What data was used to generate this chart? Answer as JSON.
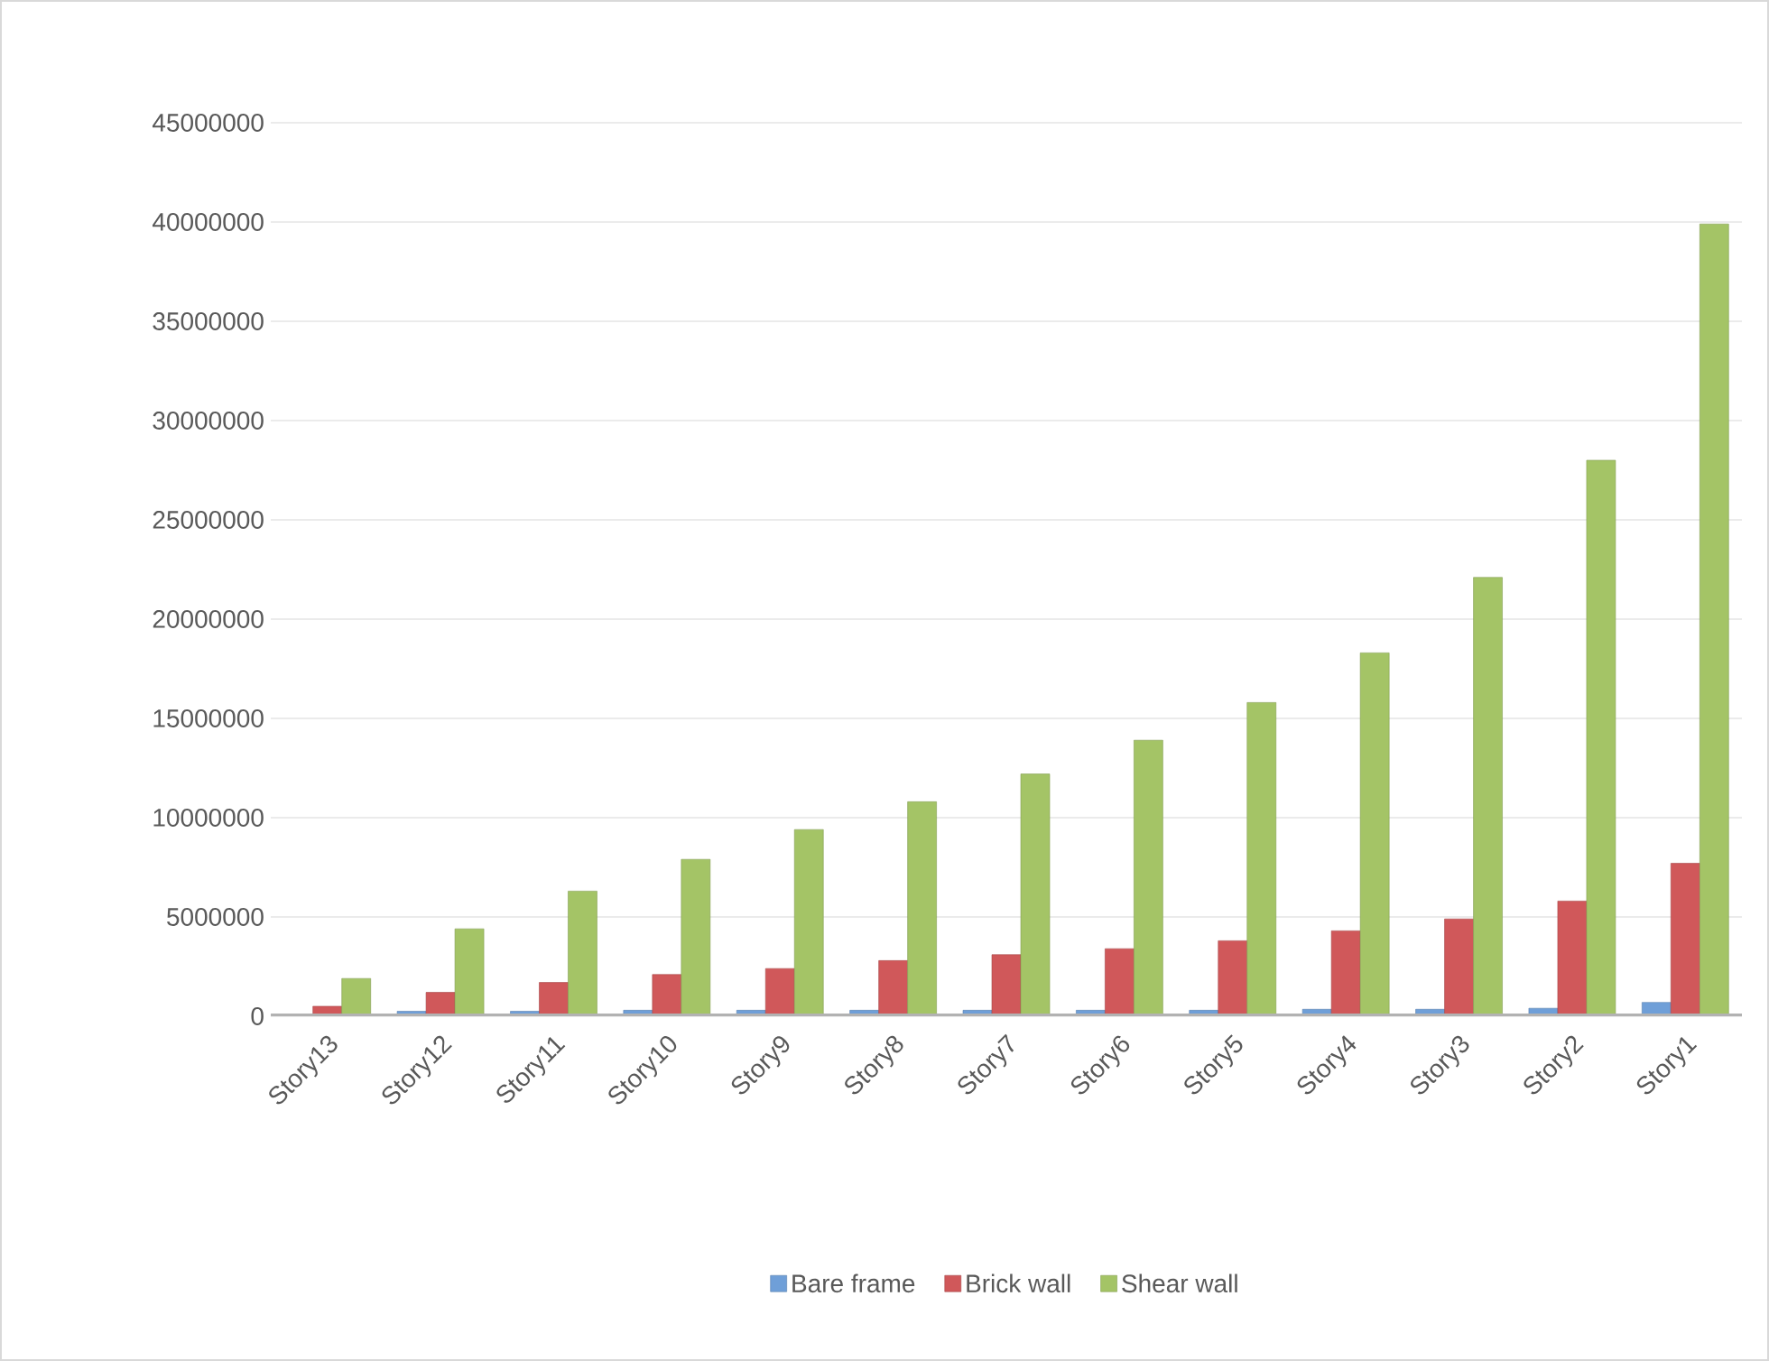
{
  "chart_data": {
    "type": "bar",
    "categories": [
      "Story13",
      "Story12",
      "Story11",
      "Story10",
      "Story9",
      "Story8",
      "Story7",
      "Story6",
      "Story5",
      "Story4",
      "Story3",
      "Story2",
      "Story1"
    ],
    "series": [
      {
        "name": "Bare frame",
        "color": "#6f9fd8",
        "values": [
          50000,
          250000,
          250000,
          300000,
          300000,
          300000,
          300000,
          300000,
          300000,
          350000,
          350000,
          400000,
          700000
        ]
      },
      {
        "name": "Brick wall",
        "color": "#d0585a",
        "values": [
          500000,
          1200000,
          1700000,
          2100000,
          2400000,
          2800000,
          3100000,
          3400000,
          3800000,
          4300000,
          4900000,
          5800000,
          7700000
        ]
      },
      {
        "name": "Shear wall",
        "color": "#a4c466",
        "values": [
          1900000,
          4400000,
          6300000,
          7900000,
          9400000,
          10800000,
          12200000,
          13900000,
          15800000,
          18300000,
          22100000,
          28000000,
          39900000
        ]
      }
    ],
    "ylim": [
      0,
      45000000
    ],
    "yticks": [
      0,
      5000000,
      10000000,
      15000000,
      20000000,
      25000000,
      30000000,
      35000000,
      40000000,
      45000000
    ],
    "grid": "y",
    "legend": "bottom"
  }
}
